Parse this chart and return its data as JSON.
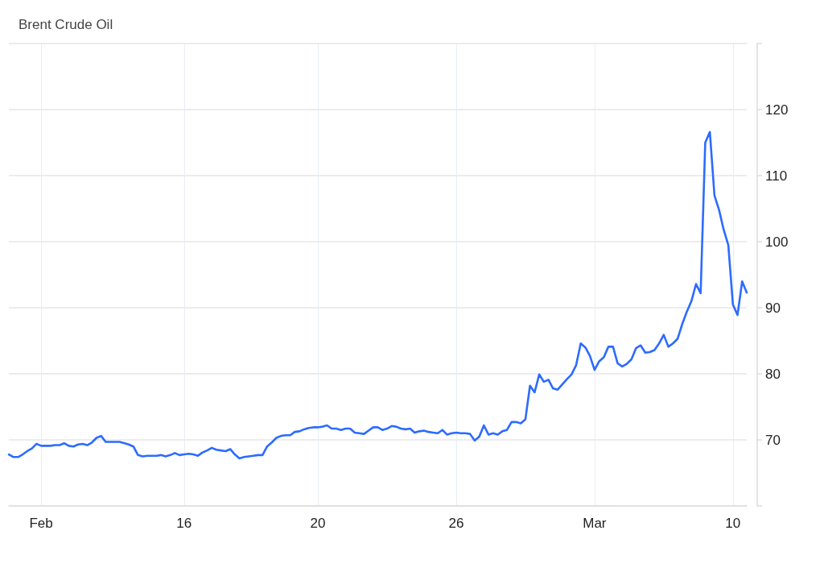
{
  "chart_data": {
    "type": "line",
    "title": "Brent Crude Oil",
    "categories": [
      null,
      null,
      null,
      null,
      null,
      null,
      null,
      "Feb",
      null,
      null,
      null,
      null,
      null,
      null,
      null,
      null,
      null,
      null,
      null,
      null,
      null,
      null,
      null,
      null,
      null,
      null,
      null,
      null,
      null,
      null,
      null,
      null,
      null,
      null,
      null,
      null,
      null,
      null,
      "16",
      null,
      null,
      null,
      null,
      null,
      null,
      null,
      null,
      null,
      null,
      null,
      null,
      null,
      null,
      null,
      null,
      null,
      null,
      null,
      null,
      null,
      null,
      null,
      null,
      null,
      null,
      null,
      null,
      "20",
      null,
      null,
      null,
      null,
      null,
      null,
      null,
      null,
      null,
      null,
      null,
      null,
      null,
      null,
      null,
      null,
      null,
      null,
      null,
      null,
      null,
      null,
      null,
      null,
      null,
      null,
      null,
      null,
      null,
      "26",
      null,
      null,
      null,
      null,
      null,
      null,
      null,
      null,
      null,
      null,
      null,
      null,
      null,
      null,
      null,
      null,
      null,
      null,
      null,
      null,
      null,
      null,
      null,
      null,
      null,
      null,
      null,
      null,
      null,
      "Mar",
      null,
      null,
      null,
      null,
      null,
      null,
      null,
      null,
      null,
      null,
      null,
      null,
      null,
      null,
      null,
      null,
      null,
      null,
      null,
      null,
      null,
      null,
      null,
      null,
      null,
      null,
      null,
      null,
      null,
      "10",
      null,
      null,
      null
    ],
    "series": [
      {
        "color": "#2d6bff",
        "values": [
          67.8,
          67.4,
          67.4,
          67.8,
          68.3,
          68.7,
          69.4,
          69.1,
          69.1,
          69.1,
          69.2,
          69.2,
          69.5,
          69.1,
          69.0,
          69.3,
          69.4,
          69.2,
          69.6,
          70.3,
          70.6,
          69.7,
          69.7,
          69.7,
          69.7,
          69.5,
          69.3,
          69.0,
          67.7,
          67.5,
          67.6,
          67.6,
          67.6,
          67.7,
          67.5,
          67.7,
          68.0,
          67.7,
          67.8,
          67.9,
          67.8,
          67.6,
          68.1,
          68.4,
          68.8,
          68.5,
          68.4,
          68.3,
          68.6,
          67.8,
          67.2,
          67.4,
          67.5,
          67.6,
          67.7,
          67.7,
          69.0,
          69.6,
          70.3,
          70.6,
          70.7,
          70.7,
          71.2,
          71.3,
          71.6,
          71.8,
          71.9,
          71.9,
          72.0,
          72.2,
          71.7,
          71.7,
          71.5,
          71.7,
          71.7,
          71.1,
          71.0,
          70.9,
          71.4,
          71.9,
          71.9,
          71.5,
          71.7,
          72.1,
          72.0,
          71.7,
          71.6,
          71.7,
          71.1,
          71.3,
          71.4,
          71.2,
          71.1,
          71.0,
          71.5,
          70.8,
          71.0,
          71.1,
          71.0,
          71.0,
          70.9,
          69.9,
          70.5,
          72.2,
          70.8,
          71.0,
          70.8,
          71.3,
          71.5,
          72.7,
          72.7,
          72.5,
          73.1,
          78.2,
          77.2,
          79.9,
          78.8,
          79.1,
          77.8,
          77.6,
          78.4,
          79.2,
          79.9,
          81.3,
          84.6,
          84.0,
          82.7,
          80.6,
          81.9,
          82.5,
          84.1,
          84.1,
          81.6,
          81.1,
          81.5,
          82.2,
          83.9,
          84.3,
          83.2,
          83.3,
          83.6,
          84.6,
          85.9,
          84.1,
          84.6,
          85.3,
          87.5,
          89.4,
          91.0,
          93.6,
          92.2,
          115.0,
          116.6,
          107.0,
          104.8,
          101.8,
          99.5,
          90.5,
          88.9,
          94.0,
          92.3
        ]
      }
    ],
    "ylim": [
      60,
      130
    ],
    "yticks": [
      {
        "value": 60,
        "label": null
      },
      70,
      80,
      90,
      100,
      110,
      120,
      {
        "value": 130,
        "label": null
      }
    ],
    "grid": true,
    "marker": "none"
  }
}
